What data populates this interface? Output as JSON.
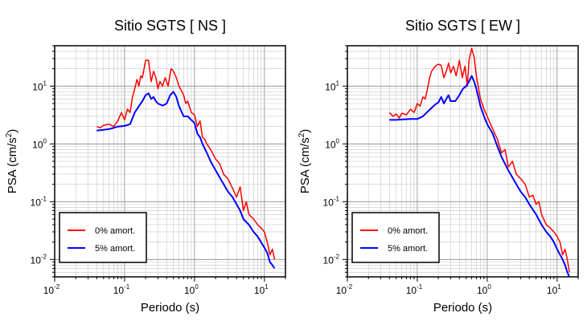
{
  "chart_data": [
    {
      "type": "line",
      "title": "Sitio SGTS [ NS ]",
      "xlabel": "Periodo (s)",
      "ylabel_main": "PSA (cm/s",
      "ylabel_sup": "2",
      "ylabel_tail": ")",
      "x_scale": "log",
      "y_scale": "log",
      "xlim": [
        0.01,
        20
      ],
      "ylim": [
        0.005,
        50
      ],
      "grid": true,
      "legend_position": "bottom-left",
      "x_tick_labels": [
        {
          "base": "10",
          "exp": "-2"
        },
        {
          "base": "10",
          "exp": "-1"
        },
        {
          "base": "10",
          "exp": "0"
        },
        {
          "base": "10",
          "exp": "1"
        }
      ],
      "y_tick_labels": [
        {
          "base": "10",
          "exp": "-2"
        },
        {
          "base": "10",
          "exp": "-1"
        },
        {
          "base": "10",
          "exp": "0"
        },
        {
          "base": "10",
          "exp": "1"
        }
      ],
      "series": [
        {
          "name": "0% amort.",
          "color": "#ff0000",
          "points": [
            [
              0.04,
              2.0
            ],
            [
              0.045,
              1.9
            ],
            [
              0.05,
              2.1
            ],
            [
              0.06,
              2.2
            ],
            [
              0.07,
              2.0
            ],
            [
              0.08,
              2.5
            ],
            [
              0.09,
              3.5
            ],
            [
              0.1,
              2.6
            ],
            [
              0.11,
              4.0
            ],
            [
              0.12,
              3.5
            ],
            [
              0.13,
              6.5
            ],
            [
              0.14,
              9.0
            ],
            [
              0.15,
              13.0
            ],
            [
              0.16,
              10.0
            ],
            [
              0.17,
              15.0
            ],
            [
              0.18,
              14.0
            ],
            [
              0.2,
              28.0
            ],
            [
              0.22,
              28.0
            ],
            [
              0.24,
              12.0
            ],
            [
              0.26,
              18.0
            ],
            [
              0.28,
              14.0
            ],
            [
              0.3,
              9.0
            ],
            [
              0.32,
              12.0
            ],
            [
              0.35,
              10.0
            ],
            [
              0.38,
              14.0
            ],
            [
              0.42,
              10.0
            ],
            [
              0.46,
              20.0
            ],
            [
              0.5,
              18.0
            ],
            [
              0.55,
              14.0
            ],
            [
              0.6,
              10.0
            ],
            [
              0.7,
              7.0
            ],
            [
              0.75,
              5.0
            ],
            [
              0.8,
              5.5
            ],
            [
              0.9,
              3.5
            ],
            [
              1.0,
              3.2
            ],
            [
              1.1,
              2.0
            ],
            [
              1.2,
              2.5
            ],
            [
              1.3,
              1.3
            ],
            [
              1.4,
              1.2
            ],
            [
              1.5,
              1.0
            ],
            [
              1.7,
              0.8
            ],
            [
              2.0,
              0.55
            ],
            [
              2.3,
              0.45
            ],
            [
              2.6,
              0.3
            ],
            [
              3.0,
              0.25
            ],
            [
              3.5,
              0.17
            ],
            [
              4.0,
              0.12
            ],
            [
              4.5,
              0.18
            ],
            [
              5.0,
              0.07
            ],
            [
              5.5,
              0.1
            ],
            [
              6.0,
              0.06
            ],
            [
              7.0,
              0.05
            ],
            [
              8.0,
              0.04
            ],
            [
              9.0,
              0.035
            ],
            [
              10.0,
              0.03
            ],
            [
              11.0,
              0.02
            ],
            [
              12.0,
              0.012
            ],
            [
              13.0,
              0.015
            ],
            [
              14.0,
              0.01
            ]
          ]
        },
        {
          "name": "5% amort.",
          "color": "#0000ff",
          "points": [
            [
              0.04,
              1.7
            ],
            [
              0.05,
              1.75
            ],
            [
              0.06,
              1.8
            ],
            [
              0.07,
              1.9
            ],
            [
              0.08,
              2.0
            ],
            [
              0.1,
              2.05
            ],
            [
              0.12,
              2.2
            ],
            [
              0.13,
              2.8
            ],
            [
              0.14,
              3.5
            ],
            [
              0.16,
              4.5
            ],
            [
              0.18,
              5.5
            ],
            [
              0.2,
              7.0
            ],
            [
              0.22,
              7.5
            ],
            [
              0.24,
              6.0
            ],
            [
              0.26,
              6.5
            ],
            [
              0.28,
              5.5
            ],
            [
              0.3,
              5.0
            ],
            [
              0.35,
              4.6
            ],
            [
              0.4,
              5.0
            ],
            [
              0.45,
              7.0
            ],
            [
              0.5,
              8.0
            ],
            [
              0.55,
              6.5
            ],
            [
              0.6,
              4.5
            ],
            [
              0.7,
              3.0
            ],
            [
              0.8,
              3.0
            ],
            [
              0.9,
              2.6
            ],
            [
              1.0,
              2.3
            ],
            [
              1.1,
              1.5
            ],
            [
              1.2,
              1.3
            ],
            [
              1.3,
              1.0
            ],
            [
              1.5,
              0.7
            ],
            [
              1.7,
              0.5
            ],
            [
              2.0,
              0.35
            ],
            [
              2.5,
              0.22
            ],
            [
              3.0,
              0.15
            ],
            [
              3.5,
              0.12
            ],
            [
              4.0,
              0.09
            ],
            [
              4.5,
              0.07
            ],
            [
              5.0,
              0.05
            ],
            [
              6.0,
              0.04
            ],
            [
              7.0,
              0.03
            ],
            [
              8.0,
              0.025
            ],
            [
              10.0,
              0.016
            ],
            [
              11.0,
              0.013
            ],
            [
              12.0,
              0.009
            ],
            [
              13.0,
              0.008
            ],
            [
              14.0,
              0.007
            ]
          ]
        }
      ]
    },
    {
      "type": "line",
      "title": "Sitio SGTS [ EW ]",
      "xlabel": "Periodo (s)",
      "ylabel_main": "PSA (cm/s",
      "ylabel_sup": "2",
      "ylabel_tail": ")",
      "x_scale": "log",
      "y_scale": "log",
      "xlim": [
        0.01,
        20
      ],
      "ylim": [
        0.005,
        50
      ],
      "grid": true,
      "legend_position": "bottom-left",
      "x_tick_labels": [
        {
          "base": "10",
          "exp": "-2"
        },
        {
          "base": "10",
          "exp": "-1"
        },
        {
          "base": "10",
          "exp": "0"
        },
        {
          "base": "10",
          "exp": "1"
        }
      ],
      "y_tick_labels": [
        {
          "base": "10",
          "exp": "-2"
        },
        {
          "base": "10",
          "exp": "-1"
        },
        {
          "base": "10",
          "exp": "0"
        },
        {
          "base": "10",
          "exp": "1"
        }
      ],
      "series": [
        {
          "name": "0% amort.",
          "color": "#ff0000",
          "points": [
            [
              0.04,
              3.5
            ],
            [
              0.045,
              3.0
            ],
            [
              0.05,
              3.3
            ],
            [
              0.055,
              2.8
            ],
            [
              0.06,
              3.4
            ],
            [
              0.07,
              3.2
            ],
            [
              0.08,
              4.0
            ],
            [
              0.09,
              3.5
            ],
            [
              0.1,
              5.0
            ],
            [
              0.11,
              4.5
            ],
            [
              0.12,
              6.5
            ],
            [
              0.13,
              6.0
            ],
            [
              0.14,
              9.0
            ],
            [
              0.15,
              14.0
            ],
            [
              0.16,
              18.0
            ],
            [
              0.18,
              22.0
            ],
            [
              0.2,
              24.0
            ],
            [
              0.22,
              23.0
            ],
            [
              0.24,
              14.0
            ],
            [
              0.26,
              18.0
            ],
            [
              0.28,
              25.0
            ],
            [
              0.3,
              17.0
            ],
            [
              0.33,
              22.0
            ],
            [
              0.36,
              15.0
            ],
            [
              0.4,
              28.0
            ],
            [
              0.44,
              14.0
            ],
            [
              0.48,
              22.0
            ],
            [
              0.52,
              10.0
            ],
            [
              0.55,
              28.0
            ],
            [
              0.6,
              45.0
            ],
            [
              0.65,
              32.0
            ],
            [
              0.7,
              15.0
            ],
            [
              0.8,
              6.0
            ],
            [
              0.9,
              4.0
            ],
            [
              1.0,
              3.0
            ],
            [
              1.2,
              1.8
            ],
            [
              1.4,
              1.2
            ],
            [
              1.6,
              0.7
            ],
            [
              1.8,
              0.8
            ],
            [
              2.0,
              0.4
            ],
            [
              2.3,
              0.5
            ],
            [
              2.6,
              0.3
            ],
            [
              3.0,
              0.25
            ],
            [
              3.5,
              0.2
            ],
            [
              4.0,
              0.12
            ],
            [
              4.5,
              0.13
            ],
            [
              5.0,
              0.09
            ],
            [
              5.5,
              0.1
            ],
            [
              6.0,
              0.06
            ],
            [
              7.0,
              0.04
            ],
            [
              8.0,
              0.035
            ],
            [
              9.0,
              0.03
            ],
            [
              10.0,
              0.025
            ],
            [
              11.0,
              0.02
            ],
            [
              12.0,
              0.012
            ],
            [
              13.0,
              0.015
            ],
            [
              14.0,
              0.01
            ],
            [
              15.0,
              0.006
            ]
          ]
        },
        {
          "name": "5% amort.",
          "color": "#0000ff",
          "points": [
            [
              0.04,
              2.6
            ],
            [
              0.05,
              2.6
            ],
            [
              0.06,
              2.65
            ],
            [
              0.08,
              2.7
            ],
            [
              0.1,
              2.7
            ],
            [
              0.12,
              3.0
            ],
            [
              0.14,
              3.6
            ],
            [
              0.16,
              4.2
            ],
            [
              0.18,
              4.8
            ],
            [
              0.2,
              5.2
            ],
            [
              0.22,
              6.5
            ],
            [
              0.24,
              5.0
            ],
            [
              0.26,
              6.0
            ],
            [
              0.28,
              7.0
            ],
            [
              0.3,
              5.5
            ],
            [
              0.35,
              5.5
            ],
            [
              0.4,
              7.0
            ],
            [
              0.45,
              9.0
            ],
            [
              0.5,
              10.0
            ],
            [
              0.55,
              12.0
            ],
            [
              0.6,
              15.0
            ],
            [
              0.65,
              12.0
            ],
            [
              0.7,
              9.0
            ],
            [
              0.8,
              4.5
            ],
            [
              0.9,
              3.0
            ],
            [
              1.0,
              2.2
            ],
            [
              1.2,
              1.5
            ],
            [
              1.4,
              0.9
            ],
            [
              1.6,
              0.6
            ],
            [
              1.8,
              0.45
            ],
            [
              2.0,
              0.35
            ],
            [
              2.5,
              0.22
            ],
            [
              3.0,
              0.15
            ],
            [
              3.5,
              0.12
            ],
            [
              4.0,
              0.09
            ],
            [
              5.0,
              0.06
            ],
            [
              6.0,
              0.04
            ],
            [
              7.0,
              0.03
            ],
            [
              8.0,
              0.025
            ],
            [
              9.0,
              0.02
            ],
            [
              10.0,
              0.015
            ],
            [
              12.0,
              0.01
            ],
            [
              13.0,
              0.008
            ],
            [
              14.0,
              0.006
            ],
            [
              15.0,
              0.005
            ]
          ]
        }
      ]
    }
  ]
}
